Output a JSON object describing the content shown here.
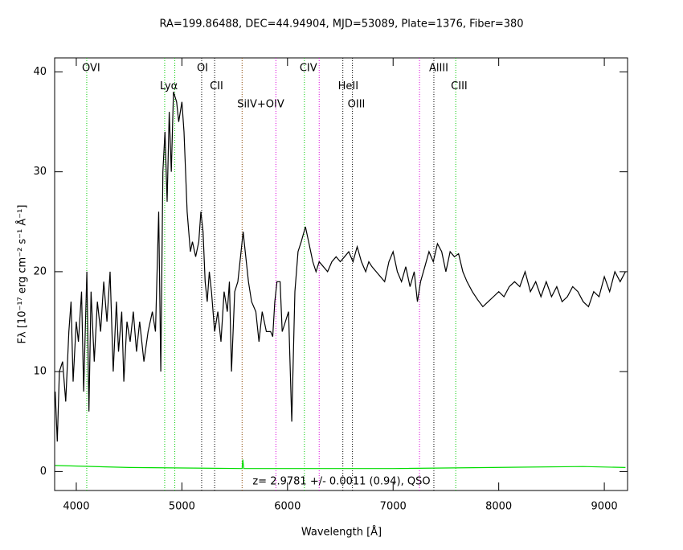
{
  "chart_data": {
    "type": "line",
    "title": "RA=199.86488, DEC=44.94904, MJD=53089, Plate=1376, Fiber=380",
    "x_label": "Wavelength [Å]",
    "y_label": "Fλ [10⁻¹⁷ erg cm⁻² s⁻¹ Å⁻¹]",
    "annotation": "z= 2.9781  +/- 0.0011 (0.94), QSO",
    "xlim": [
      3795,
      9220
    ],
    "ylim": [
      -1.9,
      41.4
    ],
    "xticks": [
      4000,
      5000,
      6000,
      7000,
      8000,
      9000
    ],
    "yticks": [
      0,
      10,
      20,
      30,
      40
    ],
    "series": [
      {
        "color": "#000000",
        "x": [
          3800,
          3820,
          3840,
          3870,
          3900,
          3930,
          3950,
          3970,
          4000,
          4020,
          4050,
          4070,
          4100,
          4120,
          4140,
          4170,
          4200,
          4230,
          4260,
          4290,
          4320,
          4350,
          4380,
          4400,
          4430,
          4450,
          4480,
          4510,
          4540,
          4570,
          4600,
          4640,
          4680,
          4720,
          4750,
          4780,
          4800,
          4820,
          4840,
          4860,
          4880,
          4900,
          4920,
          4950,
          4970,
          5000,
          5020,
          5050,
          5080,
          5100,
          5130,
          5160,
          5180,
          5200,
          5220,
          5240,
          5260,
          5280,
          5310,
          5340,
          5370,
          5400,
          5430,
          5450,
          5470,
          5500,
          5530,
          5560,
          5580,
          5600,
          5630,
          5660,
          5700,
          5730,
          5760,
          5800,
          5840,
          5860,
          5880,
          5900,
          5930,
          5950,
          5980,
          6010,
          6040,
          6070,
          6100,
          6130,
          6170,
          6200,
          6240,
          6270,
          6300,
          6340,
          6380,
          6420,
          6460,
          6500,
          6540,
          6580,
          6620,
          6660,
          6700,
          6740,
          6770,
          6800,
          6840,
          6880,
          6920,
          6960,
          7000,
          7040,
          7080,
          7120,
          7160,
          7200,
          7230,
          7260,
          7300,
          7340,
          7380,
          7420,
          7460,
          7500,
          7540,
          7580,
          7620,
          7660,
          7700,
          7750,
          7800,
          7850,
          7900,
          7950,
          8000,
          8050,
          8100,
          8150,
          8200,
          8250,
          8300,
          8350,
          8400,
          8450,
          8500,
          8550,
          8600,
          8650,
          8700,
          8750,
          8800,
          8850,
          8900,
          8950,
          9000,
          9050,
          9100,
          9150,
          9200
        ],
        "values": [
          8,
          3,
          10,
          11,
          7,
          14,
          17,
          9,
          15,
          13,
          18,
          8,
          20,
          6,
          18,
          11,
          17,
          14,
          19,
          15,
          20,
          10,
          17,
          12,
          16,
          9,
          15,
          13,
          16,
          12,
          15,
          11,
          14,
          16,
          14,
          26,
          10,
          30,
          34,
          27,
          36,
          30,
          38,
          37,
          35,
          37,
          34,
          26,
          22,
          23,
          21.5,
          23,
          26,
          24,
          19,
          17,
          20,
          18,
          14,
          16,
          13,
          18,
          16,
          19,
          10,
          18,
          19,
          22,
          24,
          22,
          19,
          17,
          16,
          13,
          16,
          14,
          14,
          13.5,
          17,
          19,
          19,
          14,
          15,
          16,
          5,
          18,
          22,
          23,
          24.5,
          23,
          21,
          20,
          21,
          20.5,
          20,
          21,
          21.5,
          21,
          21.5,
          22,
          21,
          22.5,
          21,
          20,
          21,
          20.5,
          20,
          19.5,
          19,
          21,
          22,
          20,
          19,
          20.5,
          18.5,
          20,
          17,
          19,
          20.5,
          22,
          21,
          22.8,
          22,
          20,
          22,
          21.5,
          21.8,
          20,
          19,
          18,
          17.2,
          16.5,
          17,
          17.5,
          18,
          17.5,
          18.5,
          19,
          18.5,
          20,
          18,
          19,
          17.5,
          19,
          17.5,
          18.5,
          17,
          17.5,
          18.5,
          18,
          17,
          16.5,
          18,
          17.5,
          19.5,
          18,
          20,
          19,
          20
        ]
      },
      {
        "color": "#00dd00",
        "x": [
          3800,
          4500,
          5570,
          5577,
          5585,
          7000,
          8800,
          9200
        ],
        "values": [
          0.6,
          0.4,
          0.3,
          1.2,
          0.3,
          0.3,
          0.5,
          0.4
        ]
      }
    ],
    "lines": [
      {
        "x": 4099,
        "color": "#00cc00",
        "label": "OVI"
      },
      {
        "x": 4837,
        "color": "#00cc00",
        "label": "Lyα"
      },
      {
        "x": 4933,
        "color": "#00cc00"
      },
      {
        "x": 5187,
        "color": "#000000",
        "label": "OI"
      },
      {
        "x": 5310,
        "color": "#000000",
        "label": "CII"
      },
      {
        "x": 5570,
        "color": "#884400",
        "label": "SiIV+OIV"
      },
      {
        "x": 5890,
        "color": "#dd00dd"
      },
      {
        "x": 6160,
        "color": "#00cc00",
        "label": "CIV"
      },
      {
        "x": 6300,
        "color": "#dd00dd"
      },
      {
        "x": 6524,
        "color": "#000000",
        "label": "HeII"
      },
      {
        "x": 6615,
        "color": "#000000",
        "label": "OIII"
      },
      {
        "x": 7250,
        "color": "#dd00dd"
      },
      {
        "x": 7386,
        "color": "#000000",
        "label": "AlIII"
      },
      {
        "x": 7593,
        "color": "#00cc00",
        "label": "CIII"
      }
    ]
  }
}
